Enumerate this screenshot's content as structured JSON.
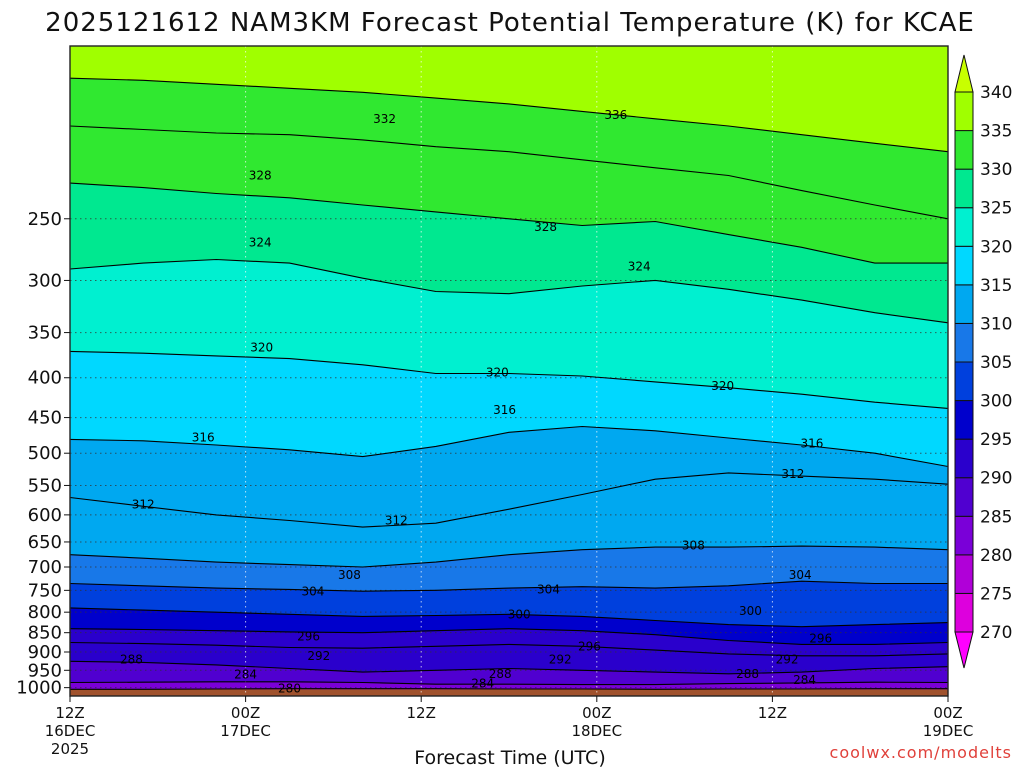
{
  "chart_data": {
    "type": "heatmap",
    "title": "2025121612 NAM3KM Forecast Potential Temperature (K) for KCAE",
    "xlabel": "Forecast Time (UTC)",
    "credit": "coolwx.com/modelts",
    "x_range_hours": [
      0,
      60
    ],
    "y_range_hpa": [
      1025,
      150
    ],
    "x_ticks": [
      {
        "hour": 0,
        "label": "12Z",
        "sub": "16DEC",
        "year": "2025"
      },
      {
        "hour": 12,
        "label": "00Z",
        "sub": "17DEC"
      },
      {
        "hour": 24,
        "label": "12Z"
      },
      {
        "hour": 36,
        "label": "00Z",
        "sub": "18DEC"
      },
      {
        "hour": 48,
        "label": "12Z"
      },
      {
        "hour": 60,
        "label": "00Z",
        "sub": "19DEC"
      }
    ],
    "y_ticks": [
      "250",
      "300",
      "350",
      "400",
      "450",
      "500",
      "550",
      "600",
      "650",
      "700",
      "750",
      "800",
      "850",
      "900",
      "950",
      "1000"
    ],
    "colorbar": {
      "levels": [
        270,
        275,
        280,
        285,
        290,
        295,
        300,
        305,
        310,
        315,
        320,
        325,
        330,
        335,
        340
      ],
      "labels": [
        "270",
        "275",
        "280",
        "285",
        "290",
        "295",
        "300",
        "305",
        "310",
        "315",
        "320",
        "325",
        "330",
        "335",
        "340"
      ],
      "colors": [
        "#ff00ff",
        "#dd00dd",
        "#b000d8",
        "#7a00d8",
        "#5000d0",
        "#2a00cc",
        "#0000cc",
        "#0040dd",
        "#1878e8",
        "#00a8f0",
        "#00d8ff",
        "#00f0d0",
        "#00e890",
        "#30e830",
        "#a0ff00",
        "#c8ff00"
      ]
    },
    "contours": [
      {
        "value": 280,
        "label": "280",
        "p": [
          1005,
          1005,
          1004,
          1003,
          1003,
          1003,
          1004,
          1004,
          1005,
          1004,
          1004,
          1003,
          1003
        ]
      },
      {
        "value": 284,
        "label": "284",
        "p": [
          985,
          984,
          983,
          983,
          985,
          990,
          990,
          991,
          991,
          988,
          986,
          984,
          985
        ]
      },
      {
        "value": 288,
        "label": "288",
        "p": [
          925,
          928,
          935,
          945,
          955,
          950,
          945,
          950,
          955,
          960,
          955,
          945,
          940
        ]
      },
      {
        "value": 292,
        "label": "292",
        "p": [
          875,
          878,
          882,
          888,
          890,
          885,
          880,
          885,
          895,
          905,
          910,
          910,
          905
        ]
      },
      {
        "value": 296,
        "label": "296",
        "p": [
          840,
          842,
          845,
          848,
          850,
          845,
          840,
          845,
          855,
          870,
          880,
          880,
          875
        ]
      },
      {
        "value": 300,
        "label": "300",
        "p": [
          790,
          795,
          800,
          805,
          810,
          808,
          805,
          810,
          820,
          830,
          835,
          830,
          825
        ]
      },
      {
        "value": 304,
        "label": "304",
        "p": [
          735,
          740,
          745,
          748,
          752,
          750,
          745,
          742,
          745,
          740,
          730,
          735,
          735
        ]
      },
      {
        "value": 308,
        "label": "308",
        "p": [
          675,
          682,
          690,
          695,
          700,
          690,
          675,
          665,
          660,
          660,
          658,
          660,
          665
        ]
      },
      {
        "value": 312,
        "label": "312",
        "p": [
          570,
          585,
          600,
          610,
          622,
          615,
          590,
          565,
          540,
          530,
          535,
          540,
          548
        ]
      },
      {
        "value": 316,
        "label": "316",
        "p": [
          480,
          482,
          488,
          495,
          505,
          490,
          470,
          462,
          468,
          478,
          488,
          500,
          520
        ]
      },
      {
        "value": 320,
        "label": "320",
        "p": [
          370,
          372,
          375,
          378,
          385,
          395,
          395,
          398,
          405,
          412,
          420,
          430,
          438
        ]
      },
      {
        "value": 324,
        "label": "324",
        "p": [
          290,
          285,
          282,
          285,
          298,
          310,
          312,
          305,
          300,
          308,
          318,
          330,
          340
        ]
      },
      {
        "value": 328,
        "label": "328",
        "p": [
          225,
          228,
          232,
          235,
          240,
          245,
          250,
          255,
          252,
          262,
          272,
          285,
          285
        ]
      },
      {
        "value": 332,
        "label": "332",
        "p": [
          190,
          192,
          194,
          195,
          198,
          202,
          205,
          210,
          215,
          220,
          230,
          240,
          250
        ]
      },
      {
        "value": 336,
        "label": "336",
        "p": [
          165,
          166,
          168,
          170,
          172,
          175,
          178,
          182,
          186,
          190,
          195,
          200,
          205
        ]
      }
    ],
    "contour_labels": [
      {
        "text": "332",
        "hour": 21.5,
        "p": 186
      },
      {
        "text": "336",
        "hour": 37.3,
        "p": 184
      },
      {
        "text": "328",
        "hour": 13.0,
        "p": 220
      },
      {
        "text": "328",
        "hour": 32.5,
        "p": 256
      },
      {
        "text": "324",
        "hour": 13.0,
        "p": 268
      },
      {
        "text": "324",
        "hour": 38.9,
        "p": 288
      },
      {
        "text": "320",
        "hour": 13.1,
        "p": 366
      },
      {
        "text": "320",
        "hour": 29.2,
        "p": 394
      },
      {
        "text": "320",
        "hour": 44.6,
        "p": 410
      },
      {
        "text": "316",
        "hour": 9.1,
        "p": 477
      },
      {
        "text": "316",
        "hour": 29.7,
        "p": 440
      },
      {
        "text": "316",
        "hour": 50.7,
        "p": 486
      },
      {
        "text": "312",
        "hour": 5.0,
        "p": 582
      },
      {
        "text": "312",
        "hour": 22.3,
        "p": 610
      },
      {
        "text": "312",
        "hour": 49.4,
        "p": 532
      },
      {
        "text": "308",
        "hour": 42.6,
        "p": 657
      },
      {
        "text": "308",
        "hour": 19.1,
        "p": 717
      },
      {
        "text": "304",
        "hour": 16.6,
        "p": 753
      },
      {
        "text": "304",
        "hour": 32.7,
        "p": 748
      },
      {
        "text": "304",
        "hour": 49.9,
        "p": 717
      },
      {
        "text": "300",
        "hour": 30.7,
        "p": 805
      },
      {
        "text": "300",
        "hour": 46.5,
        "p": 797
      },
      {
        "text": "296",
        "hour": 16.3,
        "p": 860
      },
      {
        "text": "296",
        "hour": 35.5,
        "p": 885
      },
      {
        "text": "296",
        "hour": 51.3,
        "p": 865
      },
      {
        "text": "292",
        "hour": 17.0,
        "p": 910
      },
      {
        "text": "292",
        "hour": 33.5,
        "p": 920
      },
      {
        "text": "292",
        "hour": 49.0,
        "p": 920
      },
      {
        "text": "288",
        "hour": 4.2,
        "p": 920
      },
      {
        "text": "288",
        "hour": 29.4,
        "p": 960
      },
      {
        "text": "288",
        "hour": 46.3,
        "p": 960
      },
      {
        "text": "284",
        "hour": 12.0,
        "p": 962
      },
      {
        "text": "284",
        "hour": 28.2,
        "p": 988
      },
      {
        "text": "284",
        "hour": 50.2,
        "p": 978
      },
      {
        "text": "280",
        "hour": 15.0,
        "p": 1003
      }
    ]
  }
}
